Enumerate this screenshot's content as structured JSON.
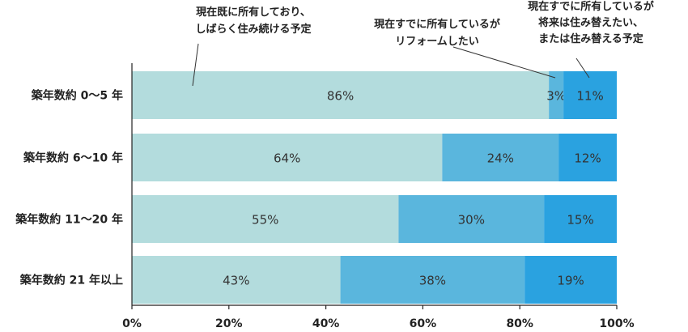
{
  "chart_data": {
    "type": "bar",
    "orientation": "horizontal",
    "stacked": true,
    "categories": [
      "築年数約 0〜5 年",
      "築年数約 6〜10 年",
      "築年数約 11〜20 年",
      "築年数約 21 年以上"
    ],
    "series": [
      {
        "values": [
          86,
          64,
          55,
          43
        ],
        "labels": [
          "86%",
          "64%",
          "55%",
          "43%"
        ],
        "color": "#b3dcdd"
      },
      {
        "values": [
          3,
          24,
          30,
          38
        ],
        "labels": [
          "3%",
          "24%",
          "30%",
          "38%"
        ],
        "color": "#5ab6dd"
      },
      {
        "values": [
          11,
          12,
          15,
          19
        ],
        "labels": [
          "11%",
          "12%",
          "15%",
          "19%"
        ],
        "color": "#2aa2e0"
      }
    ],
    "xlim": [
      0,
      100
    ],
    "xticks": [
      "0%",
      "20%",
      "40%",
      "60%",
      "80%",
      "100%"
    ],
    "grid": false,
    "annotations": [
      {
        "lines": [
          "現在既に所有しており、",
          "しばらく住み続ける予定"
        ]
      },
      {
        "lines": [
          "現在すでに所有しているが",
          "リフォームしたい"
        ]
      },
      {
        "lines": [
          "現在すでに所有しているが",
          "将来は住み替えたい、",
          "または住み替える予定"
        ]
      }
    ]
  }
}
